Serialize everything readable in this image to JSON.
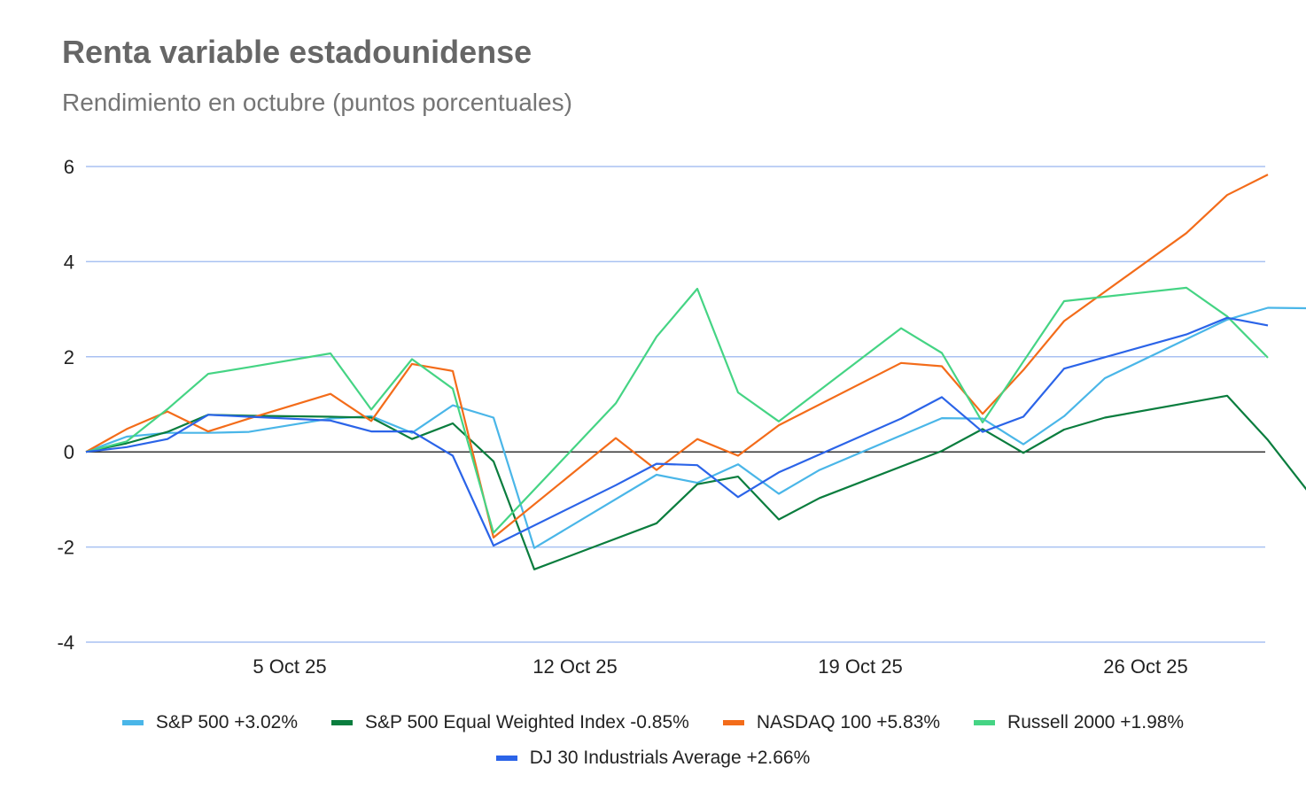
{
  "chart_data": {
    "type": "line",
    "title": "Renta variable estadounidense",
    "subtitle": "Rendimiento en octubre (puntos porcentuales)",
    "xlabel": "",
    "ylabel": "",
    "ylim": [
      -4,
      6
    ],
    "yticks": [
      6,
      4,
      2,
      0,
      -2,
      -4
    ],
    "x_day_range": [
      1,
      30
    ],
    "xticks": [
      {
        "label": "5 Oct 25",
        "day": 6
      },
      {
        "label": "12 Oct 25",
        "day": 13
      },
      {
        "label": "19 Oct 25",
        "day": 20
      },
      {
        "label": "26 Oct 25",
        "day": 27
      }
    ],
    "grid": true,
    "legend_position": "bottom",
    "series": [
      {
        "name": "S&P 500 +3.02%",
        "color": "#4ab6e8",
        "points": [
          [
            1,
            0
          ],
          [
            2,
            0.32
          ],
          [
            3,
            0.4
          ],
          [
            4,
            0.4
          ],
          [
            5,
            0.42
          ],
          [
            7,
            0.7
          ],
          [
            8,
            0.75
          ],
          [
            9,
            0.4
          ],
          [
            10,
            0.98
          ],
          [
            11,
            0.72
          ],
          [
            12,
            -2.02
          ],
          [
            15,
            -0.48
          ],
          [
            16,
            -0.65
          ],
          [
            17,
            -0.26
          ],
          [
            18,
            -0.88
          ],
          [
            19,
            -0.38
          ],
          [
            22,
            0.71
          ],
          [
            23,
            0.7
          ],
          [
            24,
            0.16
          ],
          [
            25,
            0.75
          ],
          [
            26,
            1.55
          ],
          [
            29,
            2.78
          ],
          [
            30,
            3.03
          ],
          [
            31,
            3.02
          ]
        ]
      },
      {
        "name": "S&P 500 Equal Weighted Index -0.85%",
        "color": "#0a7d3e",
        "points": [
          [
            1,
            0
          ],
          [
            2,
            0.18
          ],
          [
            3,
            0.42
          ],
          [
            4,
            0.78
          ],
          [
            5,
            0.76
          ],
          [
            7,
            0.74
          ],
          [
            8,
            0.72
          ],
          [
            9,
            0.27
          ],
          [
            10,
            0.6
          ],
          [
            11,
            -0.2
          ],
          [
            12,
            -2.47
          ],
          [
            15,
            -1.5
          ],
          [
            16,
            -0.68
          ],
          [
            17,
            -0.52
          ],
          [
            18,
            -1.42
          ],
          [
            19,
            -0.97
          ],
          [
            22,
            0.02
          ],
          [
            23,
            0.48
          ],
          [
            24,
            -0.02
          ],
          [
            25,
            0.47
          ],
          [
            26,
            0.72
          ],
          [
            29,
            1.18
          ],
          [
            30,
            0.25
          ],
          [
            31,
            -0.85
          ]
        ]
      },
      {
        "name": "NASDAQ 100 +5.83%",
        "color": "#f36c1a",
        "points": [
          [
            1,
            0
          ],
          [
            2,
            0.48
          ],
          [
            3,
            0.85
          ],
          [
            4,
            0.43
          ],
          [
            5,
            0.7
          ],
          [
            7,
            1.22
          ],
          [
            8,
            0.65
          ],
          [
            9,
            1.85
          ],
          [
            10,
            1.7
          ],
          [
            11,
            -1.8
          ],
          [
            14,
            0.29
          ],
          [
            15,
            -0.38
          ],
          [
            16,
            0.27
          ],
          [
            17,
            -0.08
          ],
          [
            18,
            0.56
          ],
          [
            21,
            1.87
          ],
          [
            22,
            1.8
          ],
          [
            23,
            0.8
          ],
          [
            24,
            1.72
          ],
          [
            25,
            2.75
          ],
          [
            28,
            4.6
          ],
          [
            29,
            5.4
          ],
          [
            30,
            5.83
          ]
        ]
      },
      {
        "name": "Russell 2000 +1.98%",
        "color": "#45d484",
        "points": [
          [
            1,
            0
          ],
          [
            2,
            0.22
          ],
          [
            3,
            0.9
          ],
          [
            4,
            1.64
          ],
          [
            5,
            1.78
          ],
          [
            7,
            2.07
          ],
          [
            8,
            0.89
          ],
          [
            9,
            1.95
          ],
          [
            10,
            1.33
          ],
          [
            11,
            -1.7
          ],
          [
            14,
            1.02
          ],
          [
            15,
            2.42
          ],
          [
            16,
            3.43
          ],
          [
            17,
            1.25
          ],
          [
            18,
            0.64
          ],
          [
            21,
            2.6
          ],
          [
            22,
            2.08
          ],
          [
            23,
            0.62
          ],
          [
            24,
            1.9
          ],
          [
            25,
            3.17
          ],
          [
            28,
            3.45
          ],
          [
            29,
            2.85
          ],
          [
            30,
            1.98
          ]
        ]
      },
      {
        "name": "DJ 30 Industrials Average +2.66%",
        "color": "#2b64e8",
        "points": [
          [
            1,
            0
          ],
          [
            2,
            0.1
          ],
          [
            3,
            0.27
          ],
          [
            4,
            0.78
          ],
          [
            5,
            0.74
          ],
          [
            7,
            0.66
          ],
          [
            8,
            0.43
          ],
          [
            9,
            0.43
          ],
          [
            10,
            -0.08
          ],
          [
            11,
            -1.97
          ],
          [
            14,
            -0.7
          ],
          [
            15,
            -0.25
          ],
          [
            16,
            -0.28
          ],
          [
            17,
            -0.95
          ],
          [
            18,
            -0.43
          ],
          [
            21,
            0.7
          ],
          [
            22,
            1.15
          ],
          [
            23,
            0.42
          ],
          [
            24,
            0.74
          ],
          [
            25,
            1.75
          ],
          [
            28,
            2.47
          ],
          [
            29,
            2.82
          ],
          [
            30,
            2.66
          ]
        ]
      }
    ]
  }
}
